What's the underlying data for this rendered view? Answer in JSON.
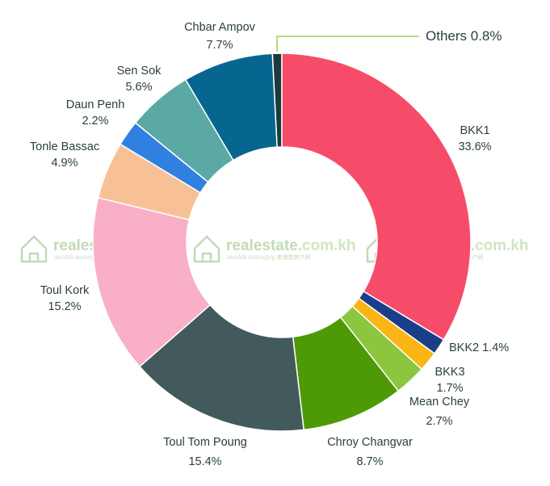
{
  "chart_data": {
    "type": "pie",
    "donut": true,
    "title": "",
    "slices": [
      {
        "label": "Others",
        "pct_label": "0.8%",
        "value": 0.8,
        "color": "#1b3b3b"
      },
      {
        "label": "BKK1",
        "pct_label": "33.6%",
        "value": 33.6,
        "color": "#f64c6a"
      },
      {
        "label": "BKK2",
        "pct_label": "1.4%",
        "value": 1.4,
        "color": "#1a3e8a"
      },
      {
        "label": "BKK3",
        "pct_label": "1.7%",
        "value": 1.7,
        "color": "#fbb514"
      },
      {
        "label": "Mean Chey",
        "pct_label": "2.7%",
        "value": 2.7,
        "color": "#8cc63f"
      },
      {
        "label": "Chroy Changvar",
        "pct_label": "8.7%",
        "value": 8.7,
        "color": "#4e9a06"
      },
      {
        "label": "Toul Tom Poung",
        "pct_label": "15.4%",
        "value": 15.4,
        "color": "#435a5c"
      },
      {
        "label": "Toul Kork",
        "pct_label": "15.2%",
        "value": 15.2,
        "color": "#f8afc7"
      },
      {
        "label": "Tonle Bassac",
        "pct_label": "4.9%",
        "value": 4.9,
        "color": "#f8c195"
      },
      {
        "label": "Daun Penh",
        "pct_label": "2.2%",
        "value": 2.2,
        "color": "#2f80e0"
      },
      {
        "label": "Sen Sok",
        "pct_label": "5.6%",
        "value": 5.6,
        "color": "#5aa9a4"
      },
      {
        "label": "Chbar Ampov",
        "pct_label": "7.7%",
        "value": 7.7,
        "color": "#066690"
      }
    ]
  },
  "watermark": {
    "brand_main": "realestate",
    "brand_domain": ".com.kh",
    "sub_text": "គេហទំព័រ អចលនទ្រព្យ 柬埔寨房产网",
    "color_main": "#8fbf7a",
    "color_domain": "#a9d090"
  },
  "leader_color": "#8cc63f"
}
